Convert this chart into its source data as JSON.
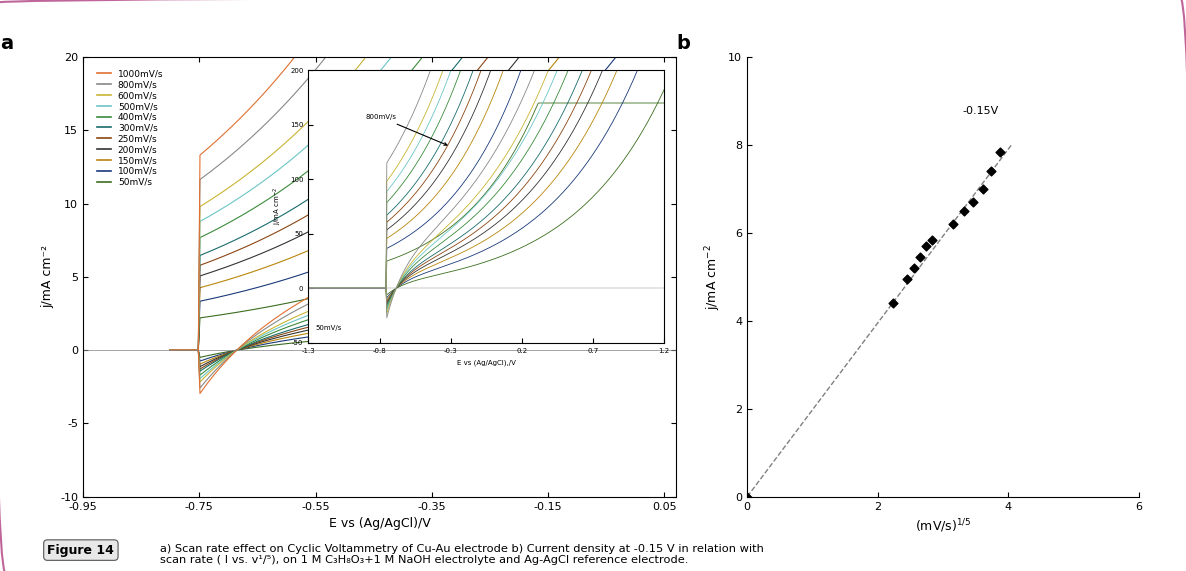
{
  "fig_width": 11.86,
  "fig_height": 5.71,
  "bg_color": "#ffffff",
  "border_color": "#c0659a",
  "panel_a": {
    "label": "a",
    "xlim": [
      -0.95,
      0.07
    ],
    "ylim": [
      -10,
      20
    ],
    "xticks": [
      -0.95,
      -0.75,
      -0.55,
      -0.35,
      -0.15,
      0.05
    ],
    "xtick_labels": [
      "-0.95",
      "-0.75",
      "-0.55",
      "-0.35",
      "-0.15",
      "0.05"
    ],
    "yticks": [
      -10,
      -5,
      0,
      5,
      10,
      15,
      20
    ],
    "xlabel": "E vs (Ag/AgCl)/V",
    "ylabel": "j/mA cm⁻²",
    "scan_rates": [
      50,
      100,
      150,
      200,
      250,
      300,
      400,
      500,
      600,
      800,
      1000
    ],
    "colors": [
      "#3b6e1e",
      "#1a3a7a",
      "#b8860b",
      "#333333",
      "#8b4513",
      "#1a6b6b",
      "#3b8b3b",
      "#6bc5c5",
      "#c8b432",
      "#888888",
      "#e07030"
    ],
    "legend_labels": [
      "1000mV/s",
      "800mV/s",
      "600mV/s",
      "500mV/s",
      "400mV/s",
      "300mV/s",
      "250mV/s",
      "200mV/s",
      "150mV/s",
      "100mV/s",
      "50mV/s"
    ],
    "legend_colors": [
      "#e07030",
      "#888888",
      "#c8b432",
      "#6bc5c5",
      "#3b8b3b",
      "#1a6b6b",
      "#8b4513",
      "#333333",
      "#b8860b",
      "#1a3a7a",
      "#3b6e1e"
    ]
  },
  "panel_b": {
    "label": "b",
    "xlim": [
      0,
      6
    ],
    "ylim": [
      0,
      10
    ],
    "xticks": [
      0,
      2,
      4,
      6
    ],
    "yticks": [
      0,
      2,
      4,
      6,
      8,
      10
    ],
    "xlabel": "(mV/s)$^{1/5}$",
    "ylabel": "j/mA cm$^{-2}$",
    "annotation": "-0.15V",
    "scatter_x": [
      0.0,
      2.24,
      2.45,
      2.55,
      2.65,
      2.74,
      2.83,
      3.16,
      3.32,
      3.46,
      3.61,
      3.74,
      3.87
    ],
    "scatter_y": [
      0.0,
      4.4,
      4.95,
      5.2,
      5.45,
      5.7,
      5.85,
      6.2,
      6.5,
      6.7,
      7.0,
      7.4,
      7.85
    ],
    "fit_x": [
      0.0,
      4.05
    ],
    "fit_y": [
      0.0,
      8.0
    ]
  },
  "caption_label": "Figure 14",
  "caption_text": "a) Scan rate effect on Cyclic Voltammetry of Cu-Au electrode b) Current density at -0.15 V in relation with\nscan rate ( I vs. v¹/⁵), on 1 M C₃H₈O₃+1 M NaOH electrolyte and Ag-AgCl reference electrode."
}
